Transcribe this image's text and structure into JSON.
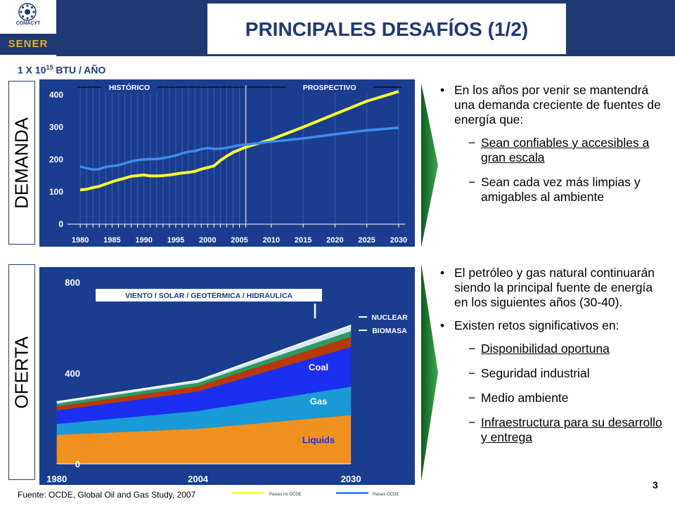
{
  "header": {
    "title": "PRINCIPALES DESAFÍOS (1/2)",
    "logo_conacyt": "CONACYT",
    "logo_sener": "SENER"
  },
  "unit_label": {
    "prefix": "1 X 10",
    "exponent": "15",
    "suffix": " BTU / AÑO"
  },
  "sections": {
    "demanda_label": "DEMANDA",
    "oferta_label": "OFERTA"
  },
  "colors": {
    "brand_navy": "#1f3a73",
    "chart_bg": "#1a3d8f",
    "non_oecd": "#ffff33",
    "oecd": "#3d8cf0",
    "arrow_green": "#1f7a2e"
  },
  "chart_data": [
    {
      "type": "line",
      "x": [
        1980,
        1981,
        1982,
        1983,
        1984,
        1985,
        1986,
        1987,
        1988,
        1989,
        1990,
        1991,
        1992,
        1993,
        1994,
        1995,
        1996,
        1997,
        1998,
        1999,
        2000,
        2001,
        2002,
        2003,
        2004,
        2005,
        2006,
        2010,
        2015,
        2020,
        2025,
        2030
      ],
      "series": [
        {
          "name": "Países no OCDE",
          "color": "#ffff33",
          "values": [
            106,
            108,
            113,
            117,
            124,
            131,
            137,
            142,
            148,
            150,
            152,
            149,
            149,
            150,
            152,
            155,
            158,
            160,
            163,
            170,
            175,
            180,
            197,
            210,
            222,
            230,
            238,
            262,
            300,
            340,
            380,
            410
          ]
        },
        {
          "name": "Países OCDE",
          "color": "#3d8cf0",
          "values": [
            178,
            173,
            169,
            170,
            177,
            180,
            182,
            188,
            194,
            198,
            200,
            201,
            201,
            204,
            208,
            212,
            219,
            224,
            226,
            232,
            235,
            233,
            233,
            236,
            240,
            244,
            246,
            255,
            265,
            278,
            290,
            298
          ]
        }
      ],
      "yticks": [
        0,
        100,
        200,
        300,
        400
      ],
      "xticks": [
        1980,
        1985,
        1990,
        1995,
        2000,
        2005,
        2010,
        2015,
        2020,
        2025,
        2030
      ],
      "ylim": [
        0,
        430
      ],
      "xlim": [
        1978,
        2031
      ],
      "divider_x": 2006,
      "annotations": {
        "historico": "HISTÓRICO",
        "prospectivo": "PROSPECTIVO"
      }
    },
    {
      "type": "area",
      "x": [
        1980,
        2004,
        2030
      ],
      "stacked": true,
      "series": [
        {
          "name": "Liquids",
          "color": "#f0901e",
          "values": [
            128,
            155,
            215
          ]
        },
        {
          "name": "Gas",
          "color": "#1a9ad6",
          "values": [
            48,
            78,
            125
          ]
        },
        {
          "name": "Coal",
          "color": "#1a2ff0",
          "values": [
            59,
            85,
            175
          ]
        },
        {
          "name": "BIOMASA",
          "color": "#b8380c",
          "values": [
            18,
            24,
            45
          ]
        },
        {
          "name": "NUCLEAR",
          "color": "#2f9a5c",
          "values": [
            12,
            15,
            25
          ]
        },
        {
          "name": "VIENTO / SOLAR / GEOTÉRMICA / HIDRÁULICA",
          "color": "#cfe8f4",
          "values": [
            8,
            10,
            25
          ]
        }
      ],
      "yticks": [
        0,
        400,
        800
      ],
      "xticks": [
        1980,
        2004,
        2030
      ],
      "ylim": [
        0,
        830
      ],
      "xlim": [
        1978,
        2035
      ]
    }
  ],
  "bullets_top": {
    "main": "En los años por venir se mantendrá una demanda creciente de fuentes de energía que:",
    "sub": [
      "Sean confiables y accesibles a gran escala",
      "Sean cada vez más limpias y amigables al ambiente"
    ]
  },
  "bullets_bottom": {
    "main1": "El petróleo y gas natural continuarán siendo la principal fuente de energía en los siguientes años (30-40).",
    "main2": "Existen retos significativos en:",
    "sub": [
      "Disponibilidad oportuna",
      "Seguridad industrial",
      "Medio ambiente",
      "Infraestructura para su desarrollo y entrega"
    ]
  },
  "footer": {
    "source": "Fuente: OCDE, Global Oil and Gas Study, 2007",
    "legend_non_oecd": "Países no OCDE",
    "legend_oecd": "Países OCDE",
    "page_number": "3"
  }
}
